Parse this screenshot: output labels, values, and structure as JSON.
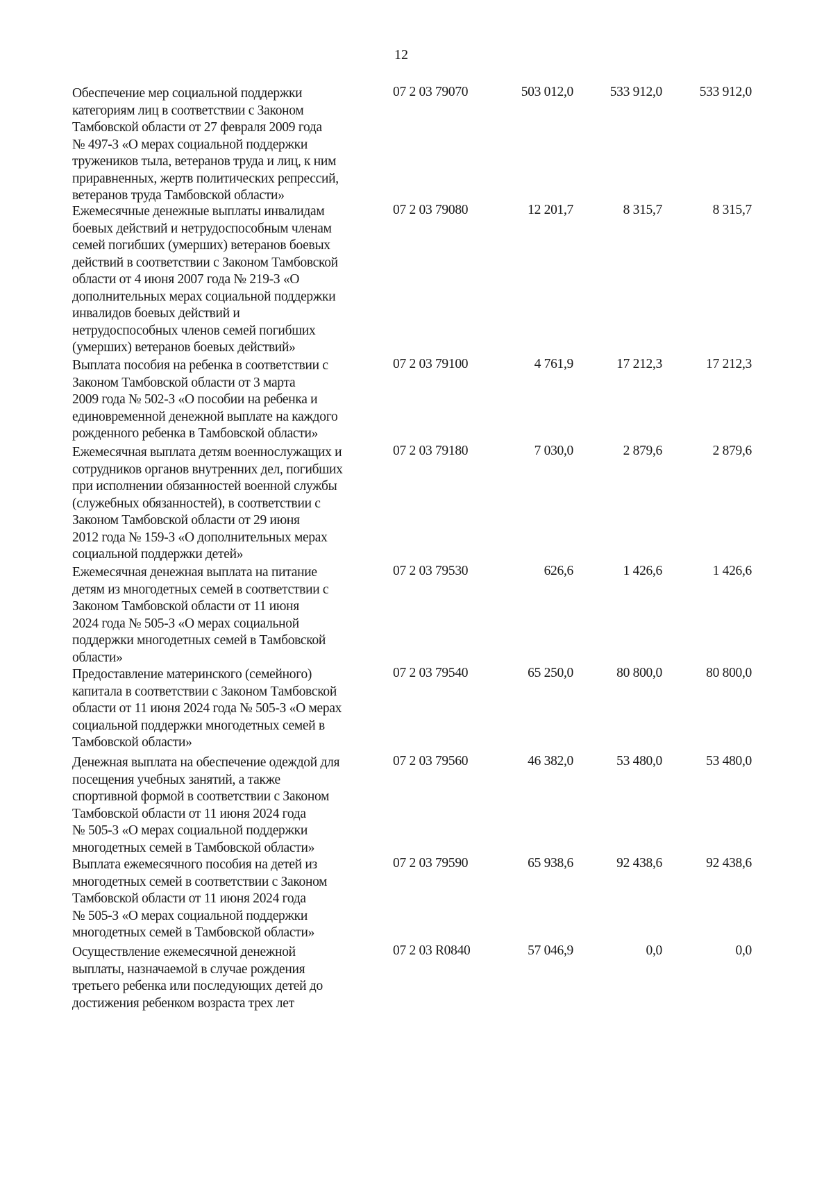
{
  "page_number": "12",
  "rows": [
    {
      "lines": [
        "Обеспечение мер социальной поддержки",
        "категориям лиц в соответствии с Законом",
        "Тамбовской области от 27 февраля 2009 года",
        "№ 497-З «О мерах социальной поддержки",
        "тружеников тыла, ветеранов труда и лиц, к ним",
        "приравненных, жертв политических репрессий,",
        "ветеранов труда Тамбовской области»"
      ],
      "code": "07 2 03 79070",
      "values": [
        "503 012,0",
        "533 912,0",
        "533 912,0"
      ]
    },
    {
      "lines": [
        "Ежемесячные денежные выплаты инвалидам",
        "боевых действий и нетрудоспособным членам",
        "семей погибших (умерших) ветеранов боевых",
        "действий в соответствии с Законом Тамбовской",
        "области от 4 июня 2007 года № 219-З «О",
        "дополнительных мерах социальной поддержки",
        "инвалидов боевых действий и",
        "нетрудоспособных членов семей погибших",
        "(умерших) ветеранов боевых действий»"
      ],
      "code": "07 2 03 79080",
      "values": [
        "12 201,7",
        "8 315,7",
        "8 315,7"
      ]
    },
    {
      "lines": [
        "Выплата пособия на ребенка в соответствии с",
        "Законом Тамбовской области от 3 марта",
        "2009 года № 502-З «О пособии на ребенка и",
        "единовременной денежной выплате на каждого",
        "рожденного ребенка в Тамбовской области»"
      ],
      "code": "07 2 03 79100",
      "values": [
        "4 761,9",
        "17 212,3",
        "17 212,3"
      ]
    },
    {
      "lines": [
        "Ежемесячная выплата детям военнослужащих и",
        "сотрудников органов внутренних дел, погибших",
        "при исполнении обязанностей военной службы",
        "(служебных обязанностей), в соответствии с",
        "Законом Тамбовской области от 29 июня",
        "2012 года № 159-З «О дополнительных мерах",
        "социальной поддержки детей»"
      ],
      "code": "07 2 03 79180",
      "values": [
        "7 030,0",
        "2 879,6",
        "2 879,6"
      ]
    },
    {
      "lines": [
        "Ежемесячная денежная выплата на питание",
        "детям из многодетных семей в соответствии с",
        "Законом Тамбовской области от 11 июня",
        "2024 года № 505-З «О мерах социальной",
        "поддержки многодетных семей в Тамбовской",
        "области»"
      ],
      "code": "07 2 03 79530",
      "values": [
        "626,6",
        "1 426,6",
        "1 426,6"
      ]
    },
    {
      "lines": [
        "Предоставление материнского (семейного)",
        "капитала в соответствии с Законом Тамбовской",
        "области от 11 июня 2024 года № 505-З «О мерах",
        "социальной поддержки многодетных семей в",
        "Тамбовской области»"
      ],
      "code": "07 2 03 79540",
      "values": [
        "65 250,0",
        "80 800,0",
        "80 800,0"
      ]
    },
    {
      "lines": [
        "Денежная выплата на обеспечение одеждой для",
        "посещения учебных занятий, а также",
        "спортивной формой в соответствии с Законом",
        "Тамбовской области от 11 июня 2024 года",
        "№ 505-З «О мерах социальной поддержки",
        "многодетных семей в Тамбовской области»"
      ],
      "code": "07 2 03 79560",
      "values": [
        "46 382,0",
        "53 480,0",
        "53 480,0"
      ]
    },
    {
      "lines": [
        "Выплата ежемесячного пособия на детей из",
        "многодетных семей в соответствии с Законом",
        "Тамбовской области от 11 июня 2024 года",
        "№ 505-З «О мерах социальной поддержки",
        "многодетных семей в Тамбовской области»"
      ],
      "code": "07 2 03 79590",
      "values": [
        "65 938,6",
        "92 438,6",
        "92 438,6"
      ]
    },
    {
      "lines": [
        "Осуществление ежемесячной денежной",
        "выплаты, назначаемой в случае рождения",
        "третьего ребенка или последующих детей до",
        "достижения ребенком возраста трех лет"
      ],
      "code": "07 2 03 R0840",
      "values": [
        "57 046,9",
        "0,0",
        "0,0"
      ]
    }
  ]
}
